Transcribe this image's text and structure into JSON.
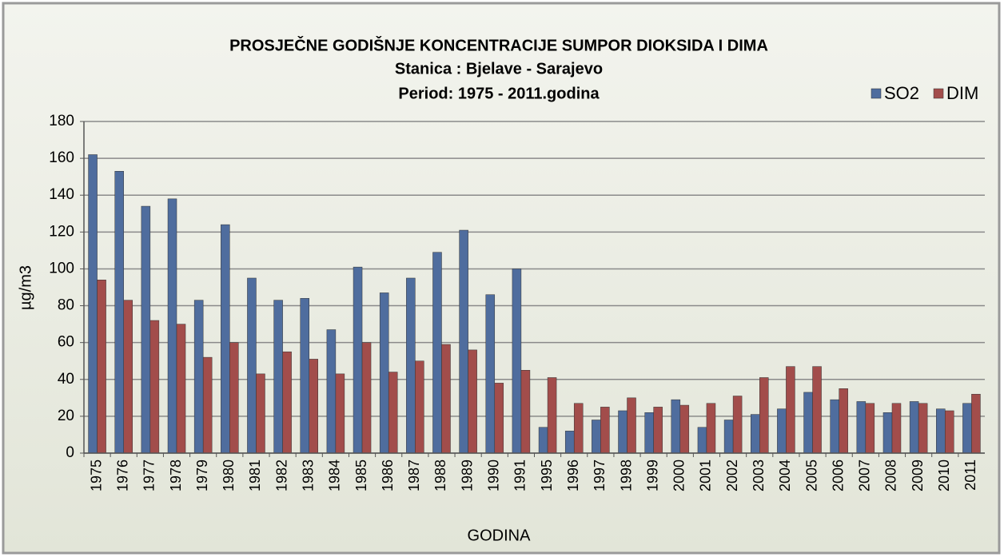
{
  "chart_data": {
    "type": "bar",
    "title": "PROSJEČNE GODIŠNJE KONCENTRACIJE SUMPOR DIOKSIDA I DIMA",
    "subtitle": [
      "Stanica : Bjelave - Sarajevo",
      "Period: 1975 - 2011.godina"
    ],
    "xlabel": "GODINA",
    "ylabel": "µg/m3",
    "categories": [
      "1975",
      "1976",
      "1977",
      "1978",
      "1979",
      "1980",
      "1981",
      "1982",
      "1983",
      "1984",
      "1985",
      "1986",
      "1987",
      "1988",
      "1989",
      "1990",
      "1991",
      "1995",
      "1996",
      "1997",
      "1998",
      "1999",
      "2000",
      "2001",
      "2002",
      "2003",
      "2004",
      "2005",
      "2006",
      "2007",
      "2008",
      "2009",
      "2010",
      "2011"
    ],
    "series": [
      {
        "name": "SO2",
        "color": "#4f6d9e",
        "values": [
          162,
          153,
          134,
          138,
          83,
          124,
          95,
          83,
          84,
          67,
          101,
          87,
          95,
          109,
          121,
          86,
          100,
          14,
          12,
          18,
          23,
          22,
          29,
          14,
          18,
          21,
          24,
          33,
          29,
          28,
          22,
          28,
          24,
          27
        ]
      },
      {
        "name": "DIM",
        "color": "#a24d4b",
        "values": [
          94,
          83,
          72,
          70,
          52,
          60,
          43,
          55,
          51,
          43,
          60,
          44,
          50,
          59,
          56,
          38,
          45,
          41,
          27,
          25,
          30,
          25,
          26,
          27,
          31,
          41,
          47,
          47,
          35,
          27,
          27,
          27,
          23,
          32
        ]
      }
    ],
    "ylim": [
      0,
      180
    ],
    "yticks": [
      0,
      20,
      40,
      60,
      80,
      100,
      120,
      140,
      160,
      180
    ],
    "grid": true,
    "legend": "upper right"
  }
}
